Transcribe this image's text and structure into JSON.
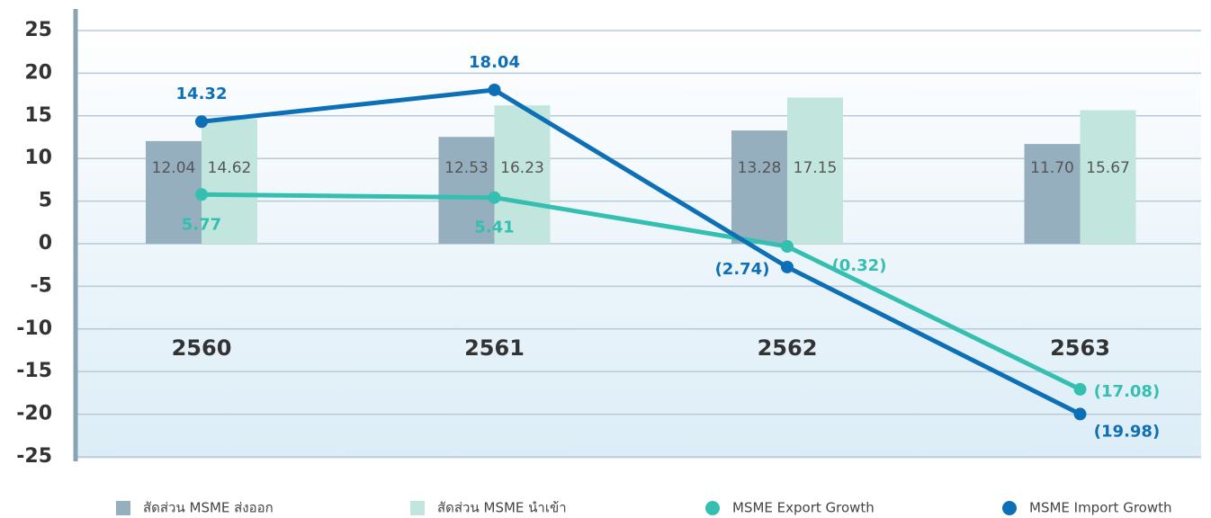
{
  "chart_data": {
    "type": "bar-line",
    "categories": [
      "2560",
      "2561",
      "2562",
      "2563"
    ],
    "series": [
      {
        "name": "สัดส่วน MSME ส่งออก",
        "type": "bar",
        "color": "#95afbf",
        "values": [
          12.04,
          12.53,
          13.28,
          11.7
        ],
        "value_labels": [
          "12.04",
          "12.53",
          "13.28",
          "11.70"
        ]
      },
      {
        "name": "สัดส่วน MSME นำเข้า",
        "type": "bar",
        "color": "#c2e6dd",
        "values": [
          14.62,
          16.23,
          17.15,
          15.67
        ],
        "value_labels": [
          "14.62",
          "16.23",
          "17.15",
          "15.67"
        ]
      },
      {
        "name": "MSME Export Growth",
        "type": "line",
        "color": "#34bfb0",
        "values": [
          5.77,
          5.41,
          -0.32,
          -17.08
        ],
        "value_labels": [
          "5.77",
          "5.41",
          "(0.32)",
          "(17.08)"
        ]
      },
      {
        "name": "MSME Import Growth",
        "type": "line",
        "color": "#0d6fb5",
        "values": [
          14.32,
          18.04,
          -2.74,
          -19.98
        ],
        "value_labels": [
          "14.32",
          "18.04",
          "(2.74)",
          "(19.98)"
        ]
      }
    ],
    "ylim": [
      -25,
      25
    ],
    "yticks": [
      25,
      20,
      15,
      10,
      5,
      0,
      -5,
      -10,
      -15,
      -20,
      -25
    ],
    "grid": true,
    "legend": "bottom"
  }
}
